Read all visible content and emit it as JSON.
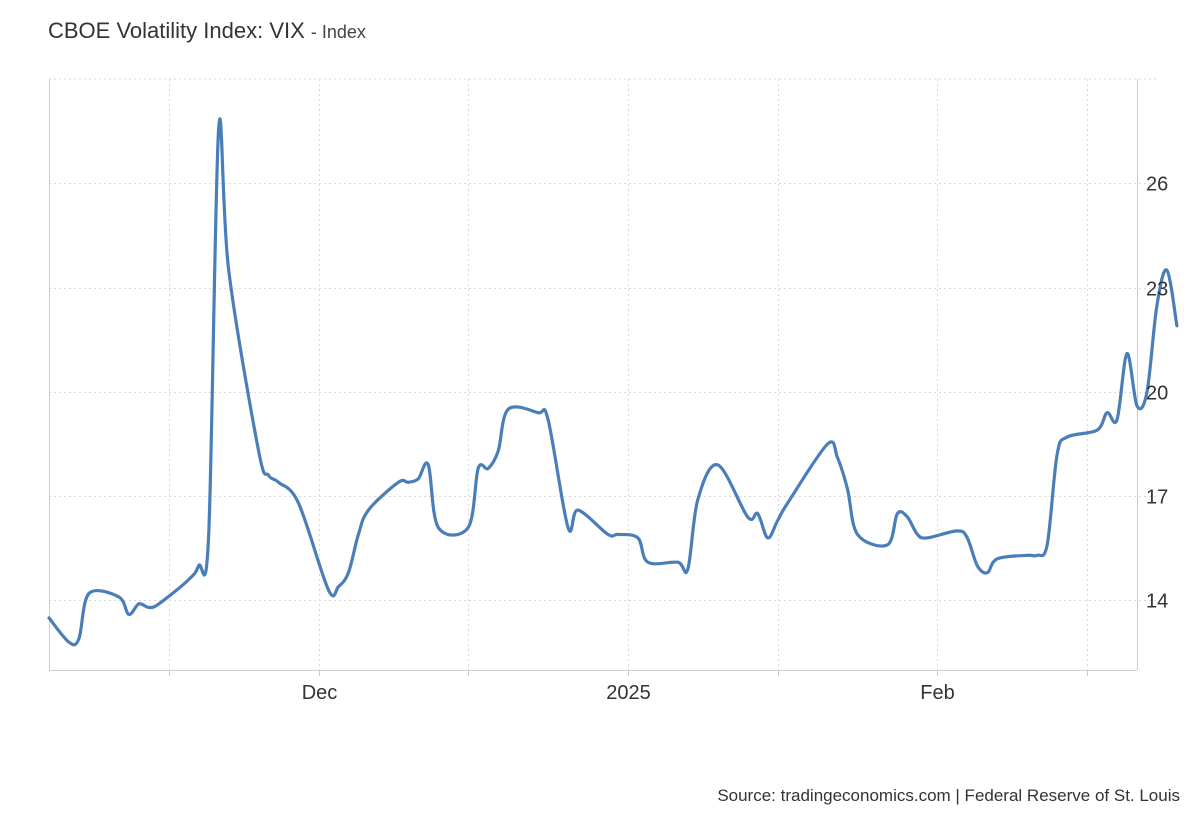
{
  "header": {
    "title": "CBOE Volatility Index: VIX",
    "unit_suffix": "- Index"
  },
  "footer": {
    "source": "Source: tradingeconomics.com | Federal Reserve of St. Louis"
  },
  "colors": {
    "line": "#4a7eb8",
    "grid": "#d9d9d9",
    "axis": "#cccccc",
    "text": "#333333"
  },
  "chart_data": {
    "type": "line",
    "title": "CBOE Volatility Index: VIX",
    "subtitle": "- Index",
    "xlabel": "",
    "ylabel": "",
    "x_range": [
      "2024-11-04",
      "2025-02-21"
    ],
    "ylim": [
      12,
      29
    ],
    "y_axis_side": "right",
    "y_ticks": [
      14,
      17,
      20,
      23,
      26
    ],
    "x_ticks": [
      {
        "date": "2024-12-01",
        "label": "Dec"
      },
      {
        "date": "2025-01-01",
        "label": "2025"
      },
      {
        "date": "2025-02-01",
        "label": "Feb"
      }
    ],
    "x_minor_grid": [
      "2024-11-16",
      "2024-12-16",
      "2025-01-16",
      "2025-02-16"
    ],
    "grid": true,
    "legend": "none",
    "series": [
      {
        "name": "",
        "points": [
          [
            "2024-11-04",
            13.5
          ],
          [
            "2024-11-06",
            12.8
          ],
          [
            "2024-11-07",
            12.9
          ],
          [
            "2024-11-08",
            14.2
          ],
          [
            "2024-11-11",
            14.1
          ],
          [
            "2024-11-12",
            13.6
          ],
          [
            "2024-11-13",
            13.9
          ],
          [
            "2024-11-14",
            13.8
          ],
          [
            "2024-11-15",
            13.9
          ],
          [
            "2024-11-18",
            14.6
          ],
          [
            "2024-11-19",
            15.0
          ],
          [
            "2024-11-20",
            15.9
          ],
          [
            "2024-11-21",
            27.6
          ],
          [
            "2024-11-22",
            23.5
          ],
          [
            "2024-11-25",
            18.3
          ],
          [
            "2024-11-26",
            17.6
          ],
          [
            "2024-11-27",
            17.4
          ],
          [
            "2024-11-29",
            16.8
          ],
          [
            "2024-12-02",
            14.3
          ],
          [
            "2024-12-03",
            14.4
          ],
          [
            "2024-12-04",
            14.8
          ],
          [
            "2024-12-05",
            15.9
          ],
          [
            "2024-12-06",
            16.6
          ],
          [
            "2024-12-09",
            17.4
          ],
          [
            "2024-12-10",
            17.4
          ],
          [
            "2024-12-11",
            17.5
          ],
          [
            "2024-12-12",
            17.9
          ],
          [
            "2024-12-13",
            16.1
          ],
          [
            "2024-12-16",
            16.1
          ],
          [
            "2024-12-17",
            17.8
          ],
          [
            "2024-12-18",
            17.8
          ],
          [
            "2024-12-19",
            18.3
          ],
          [
            "2024-12-20",
            19.5
          ],
          [
            "2024-12-23",
            19.4
          ],
          [
            "2024-12-24",
            19.2
          ],
          [
            "2024-12-26",
            16.1
          ],
          [
            "2024-12-27",
            16.6
          ],
          [
            "2024-12-30",
            15.9
          ],
          [
            "2024-12-31",
            15.9
          ],
          [
            "2025-01-02",
            15.8
          ],
          [
            "2025-01-03",
            15.1
          ],
          [
            "2025-01-06",
            15.1
          ],
          [
            "2025-01-07",
            14.9
          ],
          [
            "2025-01-08",
            16.9
          ],
          [
            "2025-01-10",
            17.9
          ],
          [
            "2025-01-13",
            16.4
          ],
          [
            "2025-01-14",
            16.5
          ],
          [
            "2025-01-15",
            15.8
          ],
          [
            "2025-01-16",
            16.3
          ],
          [
            "2025-01-17",
            16.8
          ],
          [
            "2025-01-21",
            18.5
          ],
          [
            "2025-01-22",
            18.1
          ],
          [
            "2025-01-23",
            17.2
          ],
          [
            "2025-01-24",
            15.9
          ],
          [
            "2025-01-27",
            15.6
          ],
          [
            "2025-01-28",
            16.5
          ],
          [
            "2025-01-29",
            16.4
          ],
          [
            "2025-01-30",
            15.9
          ],
          [
            "2025-01-31",
            15.8
          ],
          [
            "2025-02-03",
            16.0
          ],
          [
            "2025-02-04",
            15.8
          ],
          [
            "2025-02-05",
            15.0
          ],
          [
            "2025-02-06",
            14.8
          ],
          [
            "2025-02-07",
            15.2
          ],
          [
            "2025-02-10",
            15.3
          ],
          [
            "2025-02-11",
            15.3
          ],
          [
            "2025-02-12",
            15.6
          ],
          [
            "2025-02-13",
            18.2
          ],
          [
            "2025-02-14",
            18.7
          ],
          [
            "2025-02-17",
            18.9
          ],
          [
            "2025-02-18",
            19.4
          ],
          [
            "2025-02-19",
            19.2
          ],
          [
            "2025-02-20",
            21.1
          ],
          [
            "2025-02-21",
            19.6
          ],
          [
            "2025-02-22",
            20.0
          ],
          [
            "2025-02-23",
            22.5
          ],
          [
            "2025-02-24",
            23.5
          ],
          [
            "2025-02-25",
            21.9
          ]
        ]
      }
    ]
  }
}
